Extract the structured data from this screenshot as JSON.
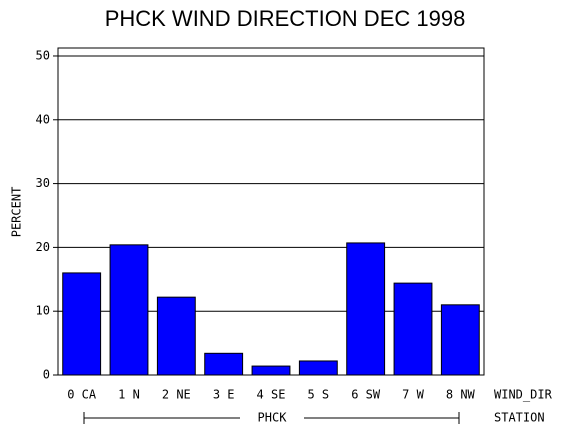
{
  "chart_data": {
    "type": "bar",
    "title": "PHCK WIND DIRECTION DEC 1998",
    "y_label": "PERCENT",
    "x_label": "WIND_DIR",
    "group_label": "STATION",
    "group": "PHCK",
    "categories": [
      "0 CA",
      "1 N",
      "2 NE",
      "3 E",
      "4 SE",
      "5 S",
      "6 SW",
      "7 W",
      "8 NW"
    ],
    "values": [
      16.0,
      20.4,
      12.2,
      3.4,
      1.4,
      2.2,
      20.7,
      14.4,
      11.0
    ],
    "color": "#0000ff",
    "ylim": [
      0,
      51.25
    ],
    "yticks": [
      0,
      10,
      20,
      30,
      40,
      50
    ],
    "grid": true
  }
}
